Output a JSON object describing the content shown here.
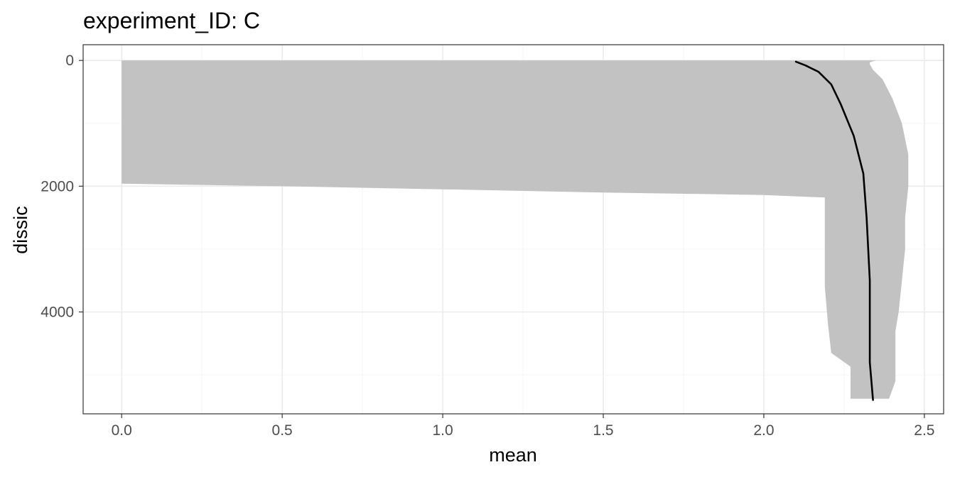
{
  "chart_data": {
    "type": "area",
    "title": "experiment_ID: C",
    "xlabel": "mean",
    "ylabel": "dissic",
    "xlim": [
      -0.12,
      2.56
    ],
    "ylim": [
      -250,
      5620
    ],
    "y_reversed": true,
    "x_ticks": [
      0.0,
      0.5,
      1.0,
      1.5,
      2.0,
      2.5
    ],
    "x_tick_labels": [
      "0.0",
      "0.5",
      "1.0",
      "1.5",
      "2.0",
      "2.5"
    ],
    "y_ticks": [
      0,
      2000,
      4000
    ],
    "y_tick_labels": [
      "0",
      "2000",
      "4000"
    ],
    "grid": true,
    "legend": "none",
    "colors": {
      "ribbon": "#bfbfbf",
      "line": "#000000",
      "grid_major": "#ebebeb",
      "grid_minor": "#f5f5f5",
      "panel_border": "#333333"
    },
    "series": [
      {
        "kind": "ribbon",
        "upper": [
          {
            "x": 2.35,
            "y": 0
          },
          {
            "x": 2.33,
            "y": 30
          },
          {
            "x": 2.33,
            "y": 60
          },
          {
            "x": 2.34,
            "y": 150
          },
          {
            "x": 2.37,
            "y": 300
          },
          {
            "x": 2.4,
            "y": 600
          },
          {
            "x": 2.43,
            "y": 1000
          },
          {
            "x": 2.45,
            "y": 1500
          },
          {
            "x": 2.45,
            "y": 2000
          },
          {
            "x": 2.44,
            "y": 2500
          },
          {
            "x": 2.44,
            "y": 3000
          },
          {
            "x": 2.43,
            "y": 3500
          },
          {
            "x": 2.42,
            "y": 4000
          },
          {
            "x": 2.41,
            "y": 4300
          },
          {
            "x": 2.41,
            "y": 4700
          },
          {
            "x": 2.41,
            "y": 5100
          },
          {
            "x": 2.39,
            "y": 5380
          }
        ],
        "lower": [
          {
            "x": 0.0,
            "y": 0
          },
          {
            "x": 0.0,
            "y": 1960
          },
          {
            "x": 0.5,
            "y": 2000
          },
          {
            "x": 1.0,
            "y": 2050
          },
          {
            "x": 1.5,
            "y": 2100
          },
          {
            "x": 2.0,
            "y": 2140
          },
          {
            "x": 2.19,
            "y": 2180
          },
          {
            "x": 2.19,
            "y": 3000
          },
          {
            "x": 2.19,
            "y": 3600
          },
          {
            "x": 2.2,
            "y": 4200
          },
          {
            "x": 2.21,
            "y": 4650
          },
          {
            "x": 2.27,
            "y": 4870
          },
          {
            "x": 2.27,
            "y": 5380
          }
        ]
      },
      {
        "kind": "line",
        "points": [
          {
            "x": 2.1,
            "y": 20
          },
          {
            "x": 2.13,
            "y": 80
          },
          {
            "x": 2.17,
            "y": 180
          },
          {
            "x": 2.21,
            "y": 380
          },
          {
            "x": 2.24,
            "y": 700
          },
          {
            "x": 2.28,
            "y": 1200
          },
          {
            "x": 2.31,
            "y": 1800
          },
          {
            "x": 2.32,
            "y": 2500
          },
          {
            "x": 2.33,
            "y": 3500
          },
          {
            "x": 2.33,
            "y": 4200
          },
          {
            "x": 2.33,
            "y": 4800
          },
          {
            "x": 2.34,
            "y": 5400
          }
        ]
      }
    ]
  }
}
